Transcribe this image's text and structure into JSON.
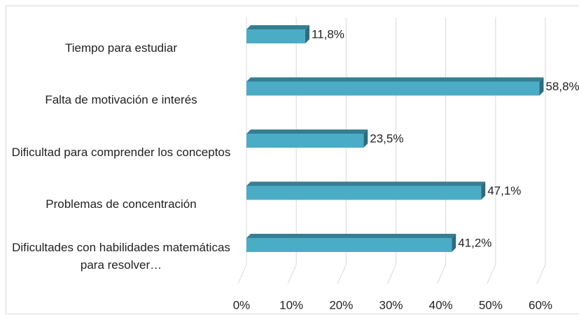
{
  "chart_data": {
    "type": "bar",
    "orientation": "horizontal",
    "categories": [
      "Tiempo para estudiar",
      "Falta de motivación e interés",
      "Dificultad para comprender los conceptos",
      "Problemas de concentración",
      "Dificultades con habilidades matemáticas para resolver…"
    ],
    "values": [
      11.8,
      58.8,
      23.5,
      47.1,
      41.2
    ],
    "value_labels": [
      "11,8%",
      "58,8%",
      "23,5%",
      "47,1%",
      "41,2%"
    ],
    "color": "#4bacc6",
    "xlim": [
      0,
      60
    ],
    "xticks": [
      {
        "value": 0,
        "label": "0%"
      },
      {
        "value": 10,
        "label": "10%"
      },
      {
        "value": 20,
        "label": "20%"
      },
      {
        "value": 30,
        "label": "30%"
      },
      {
        "value": 40,
        "label": "40%"
      },
      {
        "value": 50,
        "label": "50%"
      },
      {
        "value": 60,
        "label": "60%"
      }
    ],
    "grid": true
  }
}
